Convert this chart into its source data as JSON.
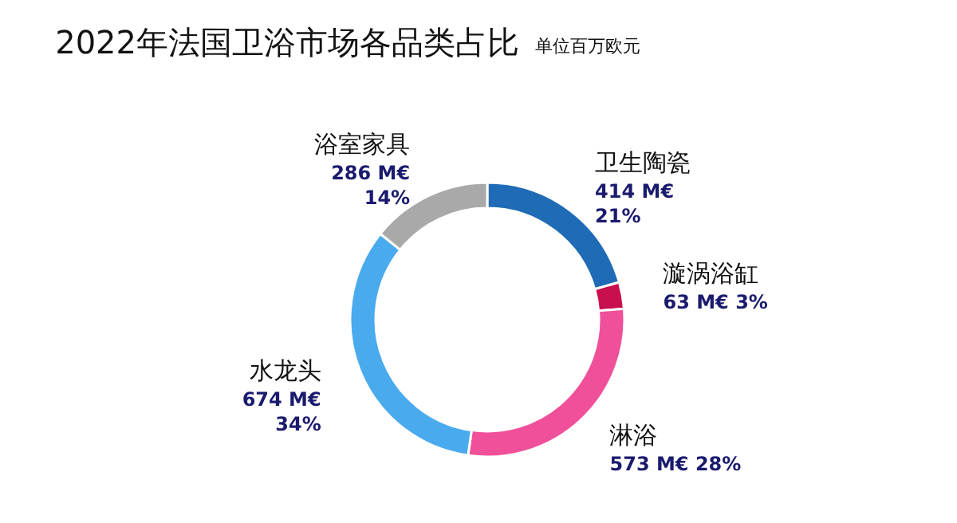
{
  "chart_data": {
    "type": "donut",
    "title": "2022年法国卫浴市场各品类占比",
    "subtitle": "单位百万欧元",
    "categories": [
      "卫生陶瓷",
      "漩涡浴缸",
      "淋浴",
      "水龙头",
      "浴室家具"
    ],
    "values": [
      414,
      63,
      573,
      674,
      286
    ],
    "colors": [
      "#1f6bb5",
      "#c8104f",
      "#f0509a",
      "#4aaaee",
      "#a9a9a9"
    ],
    "value_labels": [
      "414 M€\n21%",
      "63 M€  3%",
      "573 M€  28%",
      "674 M€\n34%",
      "286 M€\n14%"
    ]
  }
}
